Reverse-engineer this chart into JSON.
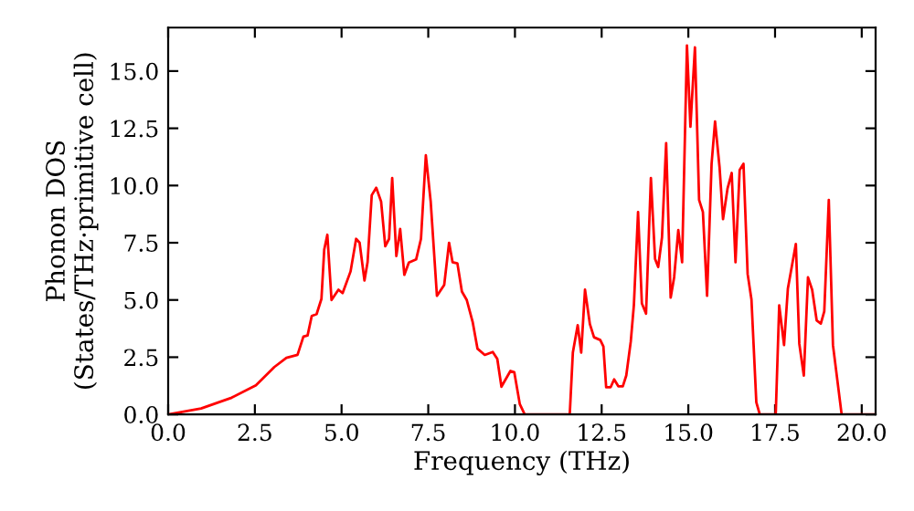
{
  "chart_data": {
    "type": "line",
    "xlabel": "Frequency (THz)",
    "ylabel": "Phonon DOS\n(States/THz·primitive cell)",
    "xlim": [
      0,
      20.4
    ],
    "ylim": [
      0,
      16.9
    ],
    "xticks": [
      {
        "value": 0,
        "label": "0.0"
      },
      {
        "value": 2.5,
        "label": "2.5"
      },
      {
        "value": 5,
        "label": "5.0"
      },
      {
        "value": 7.5,
        "label": "7.5"
      },
      {
        "value": 10,
        "label": "10.0"
      },
      {
        "value": 12.5,
        "label": "12.5"
      },
      {
        "value": 15,
        "label": "15.0"
      },
      {
        "value": 17.5,
        "label": "17.5"
      },
      {
        "value": 20,
        "label": "20.0"
      }
    ],
    "yticks": [
      {
        "value": 0,
        "label": "0.0"
      },
      {
        "value": 2.5,
        "label": "2.5"
      },
      {
        "value": 5,
        "label": "5.0"
      },
      {
        "value": 7.5,
        "label": "7.5"
      },
      {
        "value": 10,
        "label": "10.0"
      },
      {
        "value": 12.5,
        "label": "12.5"
      },
      {
        "value": 15,
        "label": "15.0"
      }
    ],
    "grid": false,
    "legend": false,
    "line_style": "solid",
    "marker": "none",
    "series": [
      {
        "color": "#ff0000",
        "x": [
          0,
          0.95,
          1.83,
          2.53,
          3.06,
          3.41,
          3.73,
          3.9,
          4.02,
          4.14,
          4.28,
          4.42,
          4.5,
          4.59,
          4.71,
          4.91,
          5.03,
          5.26,
          5.42,
          5.52,
          5.66,
          5.75,
          5.87,
          6.0,
          6.14,
          6.26,
          6.37,
          6.46,
          6.58,
          6.69,
          6.81,
          6.94,
          7.15,
          7.29,
          7.43,
          7.57,
          7.75,
          7.96,
          8.1,
          8.2,
          8.34,
          8.47,
          8.61,
          8.78,
          8.92,
          9.13,
          9.36,
          9.49,
          9.61,
          9.87,
          9.98,
          10.14,
          10.28,
          11.58,
          11.67,
          11.81,
          11.91,
          12.02,
          12.16,
          12.28,
          12.46,
          12.55,
          12.63,
          12.76,
          12.86,
          12.98,
          13.11,
          13.21,
          13.34,
          13.43,
          13.55,
          13.66,
          13.78,
          13.92,
          14.04,
          14.13,
          14.24,
          14.36,
          14.49,
          14.59,
          14.71,
          14.82,
          14.96,
          15.06,
          15.19,
          15.31,
          15.42,
          15.54,
          15.67,
          15.77,
          15.9,
          16.0,
          16.13,
          16.25,
          16.36,
          16.48,
          16.59,
          16.71,
          16.82,
          16.96,
          17.06,
          17.52,
          17.62,
          17.76,
          17.87,
          18.1,
          18.2,
          18.33,
          18.45,
          18.57,
          18.7,
          18.82,
          18.92,
          19.05,
          19.17,
          19.42,
          20.35
        ],
        "values": [
          0,
          0.26,
          0.73,
          1.27,
          2.07,
          2.47,
          2.6,
          3.4,
          3.45,
          4.3,
          4.38,
          5.05,
          7.2,
          7.85,
          5.0,
          5.45,
          5.3,
          6.25,
          7.67,
          7.5,
          5.85,
          6.65,
          9.58,
          9.9,
          9.3,
          7.35,
          7.67,
          10.33,
          6.92,
          8.1,
          6.1,
          6.63,
          6.77,
          7.67,
          11.32,
          9.3,
          5.18,
          5.66,
          7.5,
          6.65,
          6.6,
          5.37,
          5.0,
          4.04,
          2.87,
          2.6,
          2.73,
          2.43,
          1.21,
          1.9,
          1.85,
          0.45,
          0,
          0,
          2.71,
          3.9,
          2.7,
          5.45,
          3.95,
          3.37,
          3.25,
          2.97,
          1.19,
          1.19,
          1.53,
          1.23,
          1.23,
          1.7,
          3.19,
          4.79,
          8.84,
          4.85,
          4.4,
          10.33,
          6.79,
          6.44,
          7.73,
          11.85,
          5.1,
          5.99,
          8.05,
          6.65,
          16.12,
          12.57,
          16.04,
          9.37,
          8.84,
          5.18,
          10.95,
          12.8,
          10.8,
          8.53,
          9.87,
          10.55,
          6.65,
          10.68,
          10.95,
          6.13,
          5.02,
          0.53,
          0,
          0,
          4.76,
          3.03,
          5.5,
          7.45,
          3.08,
          1.7,
          5.99,
          5.45,
          4.11,
          3.97,
          4.51,
          9.37,
          3.03,
          0,
          0
        ]
      }
    ]
  }
}
